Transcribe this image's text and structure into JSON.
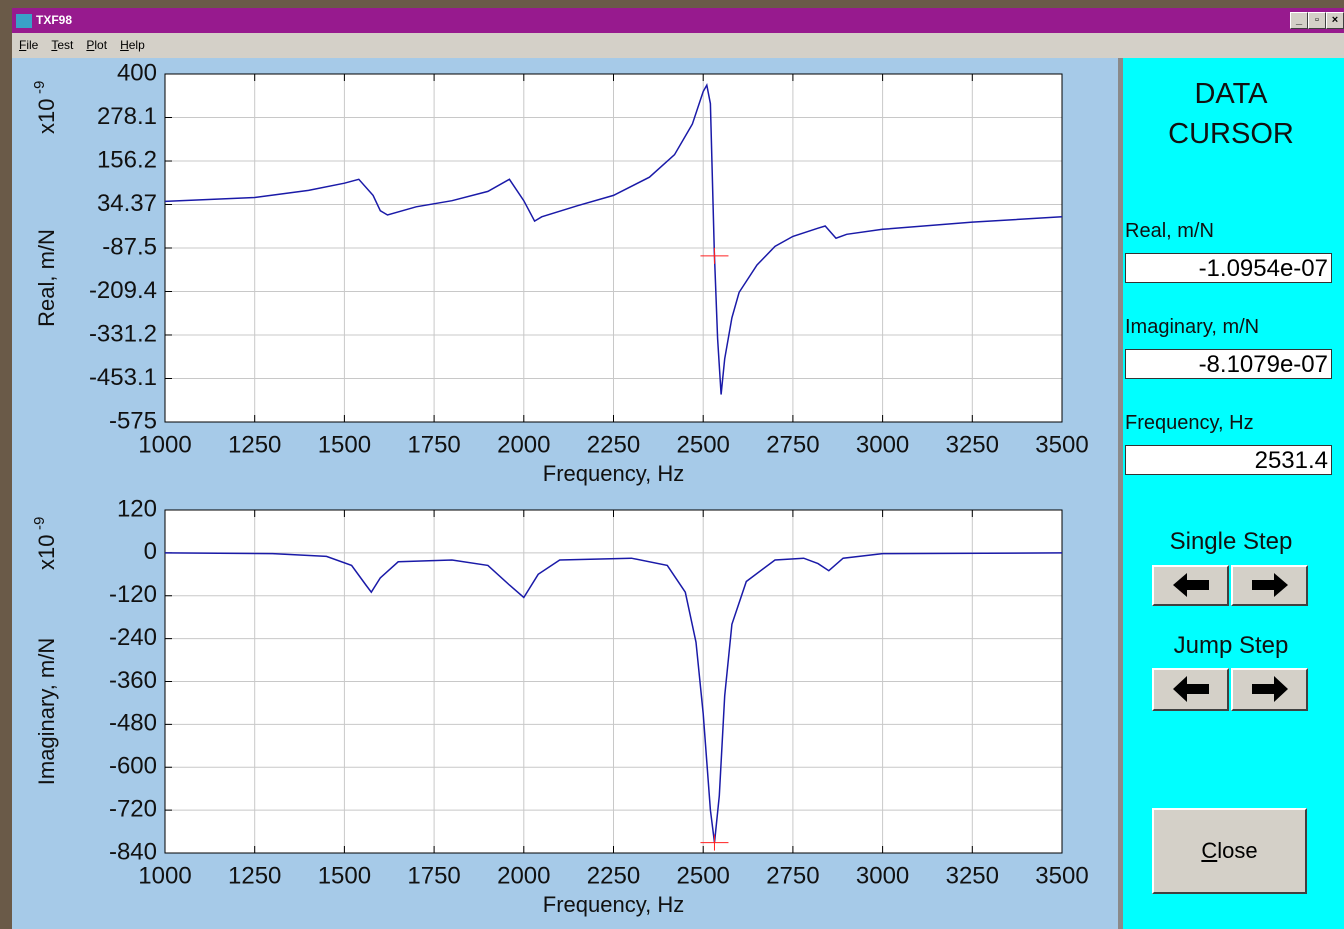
{
  "window": {
    "title": "TXF98"
  },
  "menu": [
    "File",
    "Test",
    "Plot",
    "Help"
  ],
  "panel": {
    "title": [
      "DATA",
      "CURSOR"
    ],
    "fields": [
      {
        "label": "Real, m/N",
        "value": "-1.0954e-07"
      },
      {
        "label": "Imaginary, m/N",
        "value": "-8.1079e-07"
      },
      {
        "label": "Frequency, Hz",
        "value": "2531.4"
      }
    ],
    "single_step": "Single Step",
    "jump_step": "Jump Step",
    "close": "Close"
  },
  "chart_data": [
    {
      "type": "line",
      "xlabel": "Frequency, Hz",
      "ylabel": "Real, m/N",
      "scale_label": "x10",
      "scale_exponent": "-9",
      "color": "#1a1aa8",
      "grid": true,
      "x": [
        1000,
        1250,
        1400,
        1500,
        1540,
        1580,
        1600,
        1620,
        1700,
        1800,
        1900,
        1960,
        2000,
        2030,
        2050,
        2150,
        2250,
        2350,
        2420,
        2470,
        2500,
        2510,
        2520,
        2531,
        2540,
        2550,
        2560,
        2580,
        2600,
        2650,
        2700,
        2750,
        2820,
        2840,
        2870,
        2900,
        3000,
        3250,
        3500
      ],
      "values": [
        43,
        54,
        74,
        94,
        105,
        60,
        17,
        5,
        28,
        45,
        71,
        105,
        45,
        -12,
        0,
        31,
        60,
        111,
        174,
        260,
        351,
        369,
        317,
        -97,
        -341,
        -498,
        -398,
        -283,
        -212,
        -135,
        -83,
        -55,
        -32,
        -26,
        -60,
        -49,
        -35,
        -15,
        0
      ],
      "cursor": {
        "x": 2531.4,
        "y": -109.54,
        "color": "#ff2020"
      },
      "xlim": [
        1000,
        3500
      ],
      "xticks": [
        1000,
        1250,
        1500,
        1750,
        2000,
        2250,
        2500,
        2750,
        3000,
        3250,
        3500
      ],
      "ylim": [
        -575,
        400
      ],
      "yticks": [
        400,
        278.1,
        156.2,
        34.37,
        -87.5,
        -209.4,
        -331.2,
        -453.1,
        -575
      ]
    },
    {
      "type": "line",
      "xlabel": "Frequency, Hz",
      "ylabel": "Imaginary, m/N",
      "scale_label": "x10",
      "scale_exponent": "-9",
      "color": "#1a1aa8",
      "grid": true,
      "x": [
        1000,
        1300,
        1450,
        1520,
        1560,
        1575,
        1600,
        1650,
        1800,
        1900,
        1960,
        2000,
        2040,
        2100,
        2300,
        2400,
        2450,
        2480,
        2500,
        2520,
        2531.4,
        2545,
        2560,
        2580,
        2620,
        2700,
        2780,
        2820,
        2850,
        2890,
        3000,
        3500
      ],
      "values": [
        0,
        -2,
        -10,
        -35,
        -90,
        -110,
        -70,
        -25,
        -20,
        -35,
        -90,
        -125,
        -60,
        -20,
        -15,
        -35,
        -110,
        -250,
        -450,
        -720,
        -811,
        -680,
        -400,
        -200,
        -80,
        -20,
        -15,
        -30,
        -50,
        -15,
        -2,
        0
      ],
      "cursor": {
        "x": 2531.4,
        "y": -810.79,
        "color": "#ff2020"
      },
      "xlim": [
        1000,
        3500
      ],
      "xticks": [
        1000,
        1250,
        1500,
        1750,
        2000,
        2250,
        2500,
        2750,
        3000,
        3250,
        3500
      ],
      "ylim": [
        -840,
        120
      ],
      "yticks": [
        120,
        0,
        -120,
        -240,
        -360,
        -480,
        -600,
        -720,
        -840
      ]
    }
  ]
}
